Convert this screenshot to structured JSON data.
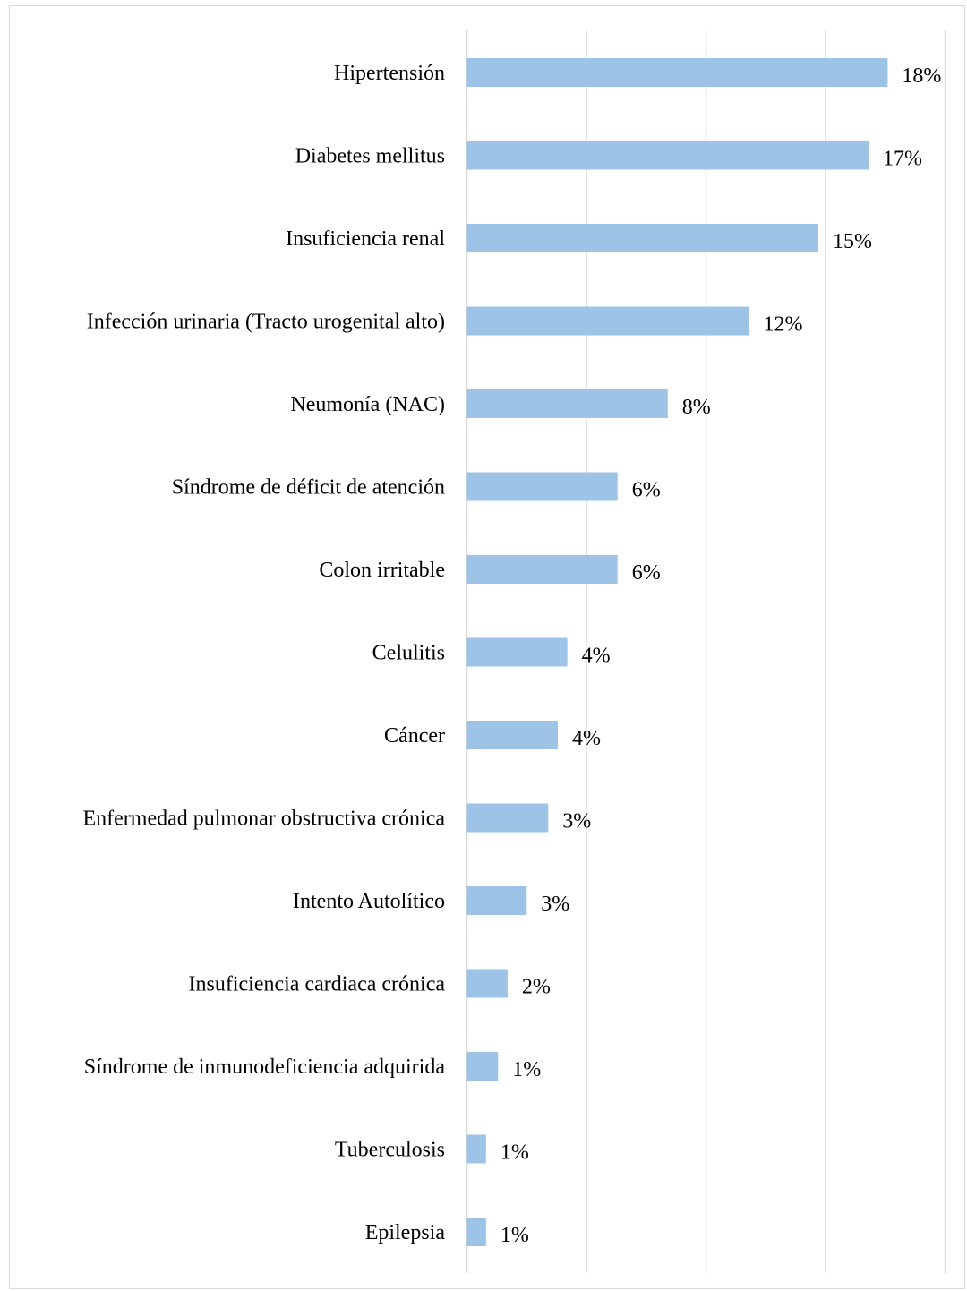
{
  "chart_data": {
    "type": "bar",
    "orientation": "horizontal",
    "title": "",
    "xlabel": "",
    "ylabel": "",
    "xlim": [
      0,
      0.2
    ],
    "grid": true,
    "bar_color": "#9dc3e6",
    "gridline_color": "#d9d9d9",
    "categories": [
      "Hipertensión",
      "Diabetes mellitus",
      "Insuficiencia renal",
      "Infección urinaria (Tracto urogenital alto)",
      "Neumonía (NAC)",
      "Síndrome de déficit de atención",
      "Colon irritable",
      "Celulitis",
      "Cáncer",
      "Enfermedad pulmonar obstructiva crónica",
      "Intento Autolítico",
      "Insuficiencia cardiaca crónica",
      "Síndrome de inmunodeficiencia adquirida",
      "Tuberculosis",
      "Epilepsia"
    ],
    "values": [
      0.176,
      0.168,
      0.147,
      0.118,
      0.084,
      0.063,
      0.063,
      0.042,
      0.038,
      0.034,
      0.025,
      0.017,
      0.013,
      0.008,
      0.008
    ],
    "value_labels": [
      "18%",
      "17%",
      "15%",
      "12%",
      "8%",
      "6%",
      "6%",
      "4%",
      "4%",
      "3%",
      "3%",
      "2%",
      "1%",
      "1%",
      "1%"
    ]
  }
}
